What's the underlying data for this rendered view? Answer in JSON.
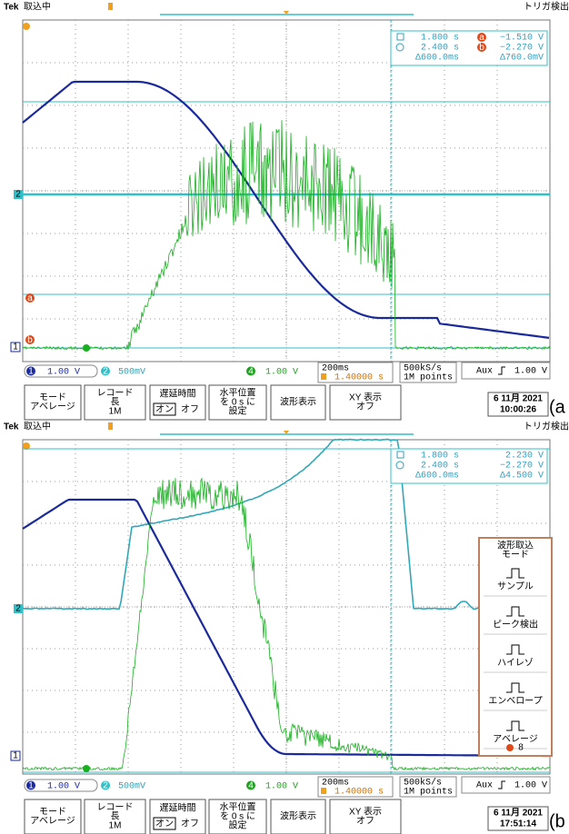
{
  "panels": [
    {
      "brand": "Tek",
      "state": "取込中",
      "trigger": "トリガ検出",
      "cursor": {
        "t1": "1.800 s",
        "t2": "2.400 s",
        "dt": "Δ600.0ms",
        "v1": "−1.510 V",
        "v2": "−2.270 V",
        "dv": "Δ760.0mV",
        "a": "a",
        "b": "b"
      },
      "channels": [
        {
          "n": "1",
          "scale": "1.00 V"
        },
        {
          "n": "2",
          "scale": "500mV"
        },
        {
          "n": "4",
          "scale": "1.00 V"
        }
      ],
      "timebase": "200ms",
      "position": "1.40000 s",
      "rate": "500kS/s",
      "points": "1M points",
      "trigger_source": "Aux",
      "trigger_level": "1.00 V",
      "buttons": [
        {
          "lines": [
            "モード",
            "アベレージ"
          ]
        },
        {
          "lines": [
            "レコード",
            "長",
            "1M"
          ]
        },
        {
          "title": "遅延時間",
          "on": "オン",
          "off": "オフ"
        },
        {
          "lines": [
            "水平位置",
            "を 0 s に",
            "設定"
          ]
        },
        {
          "lines": [
            "波形表示"
          ]
        },
        {
          "lines": [
            "XY 表示",
            "オフ"
          ]
        }
      ],
      "date": "6 11月 2021",
      "time": "10:00:26",
      "label": "(a"
    },
    {
      "brand": "Tek",
      "state": "取込中",
      "trigger": "トリガ検出",
      "cursor": {
        "t1": "1.800 s",
        "t2": "2.400 s",
        "dt": "Δ600.0ms",
        "v1": "2.230 V",
        "v2": "−2.270 V",
        "dv": "Δ4.500 V"
      },
      "channels": [
        {
          "n": "1",
          "scale": "1.00 V"
        },
        {
          "n": "2",
          "scale": "500mV"
        },
        {
          "n": "4",
          "scale": "1.00 V"
        }
      ],
      "timebase": "200ms",
      "position": "1.40000 s",
      "rate": "500kS/s",
      "points": "1M points",
      "trigger_source": "Aux",
      "trigger_level": "1.00 V",
      "buttons": [
        {
          "lines": [
            "モード",
            "アベレージ"
          ]
        },
        {
          "lines": [
            "レコード",
            "長",
            "1M"
          ]
        },
        {
          "title": "遅延時間",
          "on": "オン",
          "off": "オフ"
        },
        {
          "lines": [
            "水平位置",
            "を 0 s に",
            "設定"
          ]
        },
        {
          "lines": [
            "波形表示"
          ]
        },
        {
          "lines": [
            "XY 表示",
            "オフ"
          ]
        }
      ],
      "menu": {
        "title": [
          "波形取込",
          "モード"
        ],
        "items": [
          "サンプル",
          "ピーク検出",
          "ハイレゾ",
          "エンベロープ",
          "アベレージ"
        ],
        "count": "8"
      },
      "date": "6 11月 2021",
      "time": "17:51:14",
      "label": "(b"
    }
  ]
}
